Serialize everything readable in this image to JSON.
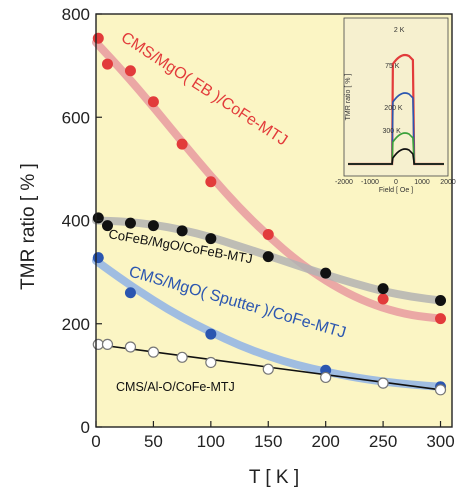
{
  "chart_data": {
    "type": "scatter",
    "title": "",
    "xlabel": "T [ K ]",
    "ylabel": "TMR ratio [ % ]",
    "xlim": [
      0,
      310
    ],
    "ylim": [
      0,
      800
    ],
    "xticks": [
      0,
      50,
      100,
      150,
      200,
      250,
      300
    ],
    "yticks": [
      0,
      200,
      400,
      600,
      800
    ],
    "grid": false,
    "background": "#fbf5c4",
    "series": [
      {
        "name": "CMS/MgO( EB )/CoFe-MTJ",
        "label_parts": [
          "CMS/MgO(",
          "EB",
          ")/CoFe-MTJ"
        ],
        "marker_color": "#e23b3b",
        "marker": "filled-circle",
        "band_color": "#e79aa0",
        "x": [
          2,
          10,
          30,
          50,
          75,
          100,
          150,
          250,
          300
        ],
        "y": [
          753,
          703,
          690,
          630,
          548,
          475,
          373,
          248,
          210
        ],
        "fit_x": [
          0,
          25,
          50,
          75,
          100,
          125,
          150,
          175,
          200,
          225,
          250,
          275,
          300
        ],
        "fit_y": [
          745,
          685,
          620,
          552,
          486,
          424,
          370,
          322,
          283,
          252,
          230,
          216,
          210
        ]
      },
      {
        "name": "CoFeB/MgO/CoFeB-MTJ",
        "label_parts": [
          "CoFeB/MgO/CoFeB-MTJ"
        ],
        "marker_color": "#111111",
        "marker": "filled-circle",
        "band_color": "#b3b3b3",
        "x": [
          2,
          10,
          30,
          50,
          75,
          100,
          150,
          200,
          250,
          300
        ],
        "y": [
          405,
          390,
          395,
          390,
          380,
          365,
          330,
          298,
          268,
          245
        ],
        "fit_x": [
          0,
          25,
          50,
          75,
          100,
          125,
          150,
          175,
          200,
          225,
          250,
          275,
          300
        ],
        "fit_y": [
          400,
          398,
          392,
          382,
          368,
          350,
          332,
          313,
          295,
          278,
          263,
          252,
          245
        ]
      },
      {
        "name": "CMS/MgO( Sputter )/CoFe-MTJ",
        "label_parts": [
          "CMS/MgO(",
          "Sputter",
          ")/CoFe-MTJ"
        ],
        "marker_color": "#2b56b0",
        "marker": "filled-circle",
        "band_color": "#8fb3e6",
        "x": [
          2,
          30,
          100,
          200,
          250,
          300
        ],
        "y": [
          328,
          260,
          180,
          110,
          85,
          78
        ],
        "fit_x": [
          0,
          25,
          50,
          75,
          100,
          125,
          150,
          175,
          200,
          225,
          250,
          275,
          300
        ],
        "fit_y": [
          322,
          282,
          245,
          212,
          184,
          158,
          137,
          120,
          107,
          96,
          88,
          82,
          78
        ]
      },
      {
        "name": "CMS/Al-O/CoFe-MTJ",
        "label_parts": [
          "CMS/Al-O/CoFe-MTJ"
        ],
        "marker_color": "#ffffff",
        "marker": "open-circle",
        "band_color": "#111111",
        "x": [
          2,
          10,
          30,
          50,
          75,
          100,
          150,
          200,
          250,
          300
        ],
        "y": [
          160,
          160,
          155,
          145,
          135,
          125,
          112,
          96,
          85,
          72
        ],
        "fit_x": [
          0,
          300
        ],
        "fit_y": [
          160,
          72
        ]
      }
    ],
    "inset": {
      "xlabel": "Field [ Oe ]",
      "ylabel": "TMR ratio [ % ]",
      "xticks": [
        -2000,
        -1000,
        0,
        1000,
        2000
      ],
      "temperature_labels": [
        "2 K",
        "75 K",
        "200 K",
        "300 K"
      ],
      "temperature_colors": [
        "#e23b3b",
        "#2b56b0",
        "#3aa03a",
        "#111111"
      ]
    }
  }
}
